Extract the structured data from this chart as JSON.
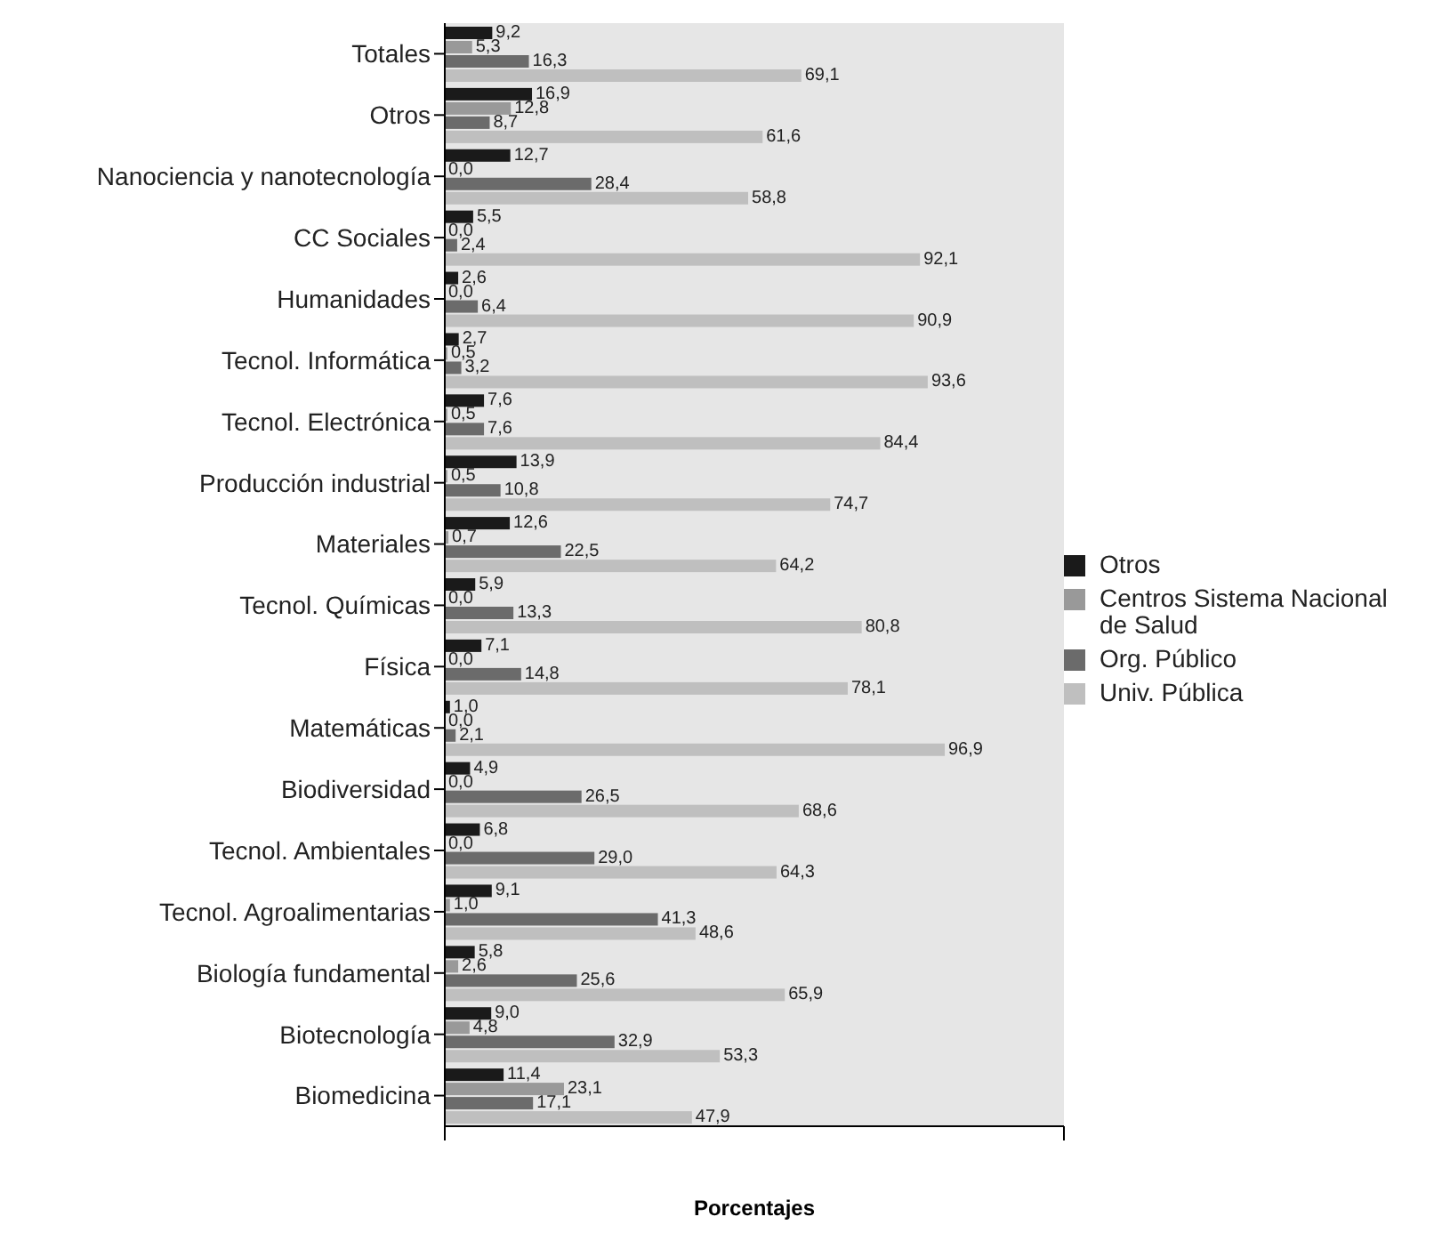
{
  "chart_data": {
    "type": "bar",
    "orientation": "horizontal",
    "xlabel": "Porcentajes",
    "categories": [
      "Totales",
      "Otros",
      "Nanociencia y nanotecnología",
      "CC Sociales",
      "Humanidades",
      "Tecnol. Informática",
      "Tecnol. Electrónica",
      "Producción industrial",
      "Materiales",
      "Tecnol. Químicas",
      "Física",
      "Matemáticas",
      "Biodiversidad",
      "Tecnol. Ambientales",
      "Tecnol. Agroalimentarias",
      "Biología fundamental",
      "Biotecnología",
      "Biomedicina"
    ],
    "series": [
      {
        "name": "Otros",
        "color": "#1a1a1a",
        "values": [
          9.2,
          16.9,
          12.7,
          5.5,
          2.6,
          2.7,
          7.6,
          13.9,
          12.6,
          5.9,
          7.1,
          1.0,
          4.9,
          6.8,
          9.1,
          5.8,
          9.0,
          11.4
        ],
        "value_labels": [
          "9,2",
          "16,9",
          "12,7",
          "5,5",
          "2,6",
          "2,7",
          "7,6",
          "13,9",
          "12,6",
          "5,9",
          "7,1",
          "1,0",
          "4,9",
          "6,8",
          "9,1",
          "5,8",
          "9,0",
          "11,4"
        ]
      },
      {
        "name": "Centros Sistema Nacional de Salud",
        "color": "#999999",
        "values": [
          5.3,
          12.8,
          0.0,
          0.0,
          0.0,
          0.5,
          0.5,
          0.5,
          0.7,
          0.0,
          0.0,
          0.0,
          0.0,
          0.0,
          1.0,
          2.6,
          4.8,
          23.1
        ],
        "value_labels": [
          "5,3",
          "12,8",
          "0,0",
          "0,0",
          "0,0",
          "0,5",
          "0,5",
          "0,5",
          "0,7",
          "0,0",
          "0,0",
          "0,0",
          "0,0",
          "0,0",
          "1,0",
          "2,6",
          "4,8",
          "23,1"
        ]
      },
      {
        "name": "Org. Público",
        "color": "#6b6b6b",
        "values": [
          16.3,
          8.7,
          28.4,
          2.4,
          6.4,
          3.2,
          7.6,
          10.8,
          22.5,
          13.3,
          14.8,
          2.1,
          26.5,
          29.0,
          41.3,
          25.6,
          32.9,
          17.1
        ],
        "value_labels": [
          "16,3",
          "8,7",
          "28,4",
          "2,4",
          "6,4",
          "3,2",
          "7,6",
          "10,8",
          "22,5",
          "13,3",
          "14,8",
          "2,1",
          "26,5",
          "29,0",
          "41,3",
          "25,6",
          "32,9",
          "17,1"
        ]
      },
      {
        "name": "Univ. Pública",
        "color": "#bfbfbf",
        "values": [
          69.1,
          61.6,
          58.8,
          92.1,
          90.9,
          93.6,
          84.4,
          74.7,
          64.2,
          80.8,
          78.1,
          96.9,
          68.6,
          64.3,
          48.6,
          65.9,
          53.3,
          47.9
        ],
        "value_labels": [
          "69,1",
          "61,6",
          "58,8",
          "92,1",
          "90,9",
          "93,6",
          "84,4",
          "74,7",
          "64,2",
          "80,8",
          "78,1",
          "96,9",
          "68,6",
          "64,3",
          "48,6",
          "65,9",
          "53,3",
          "47,9"
        ]
      }
    ],
    "xlim": [
      0,
      120
    ],
    "xticks": [
      {
        "value": 0,
        "label": null
      },
      {
        "value": 120,
        "label": null
      }
    ],
    "tick_labels": "y",
    "legend": "right",
    "grid": false
  }
}
